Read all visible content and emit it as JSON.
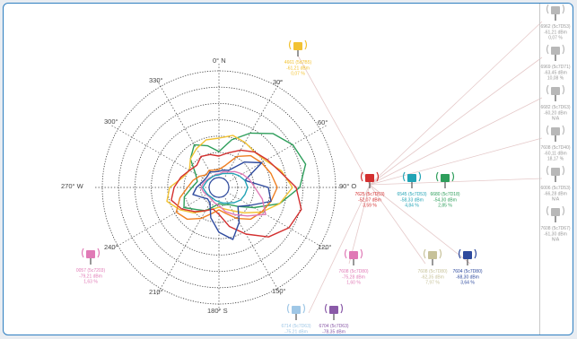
{
  "colors": {
    "frame_border": "#2f7fc1",
    "red": "#d32f2f",
    "orange": "#ef7f22",
    "green": "#2e9e5b",
    "yellow": "#f2c232",
    "blue": "#2e4a9e",
    "teal": "#22a3b5",
    "pink": "#e07ab6",
    "olive": "#c7c29a",
    "light_blue": "#9fc7e6",
    "grey": "#9a9a9a"
  },
  "compass": {
    "n": "0° N",
    "d30": "30°",
    "d60": "60°",
    "e": "90° O",
    "d120": "120°",
    "d150": "150°",
    "s": "180° S",
    "d210": "210°",
    "d240": "240°",
    "w": "270° W",
    "d300": "300°",
    "d330": "330°"
  },
  "antennas": [
    {
      "id": "a_yellow",
      "icon": "cell-tower-icon",
      "color": "#f2c232",
      "lines": [
        "4661 (5d7B5)",
        "-61,21 dBm",
        "0,07 %"
      ]
    },
    {
      "id": "a_red",
      "icon": "cell-tower-icon",
      "color": "#d32f2f",
      "lines": [
        "7625 (5c7D53)",
        "-52,07 dBm",
        "3,59 %"
      ]
    },
    {
      "id": "a_teal",
      "icon": "cell-tower-icon",
      "color": "#22a3b5",
      "lines": [
        "6545 (5c7D53)",
        "-58,33 dBm",
        "4,84 %"
      ]
    },
    {
      "id": "a_green",
      "icon": "cell-tower-icon",
      "color": "#2e9e5b",
      "lines": [
        "6680 (5c7D18)",
        "-54,30 dBm",
        "2,85 %"
      ]
    },
    {
      "id": "a_pink_left",
      "icon": "cell-tower-icon",
      "color": "#e07ab6",
      "lines": [
        "0057 (5c7203)",
        "-79,21 dBm",
        "1,63 %"
      ]
    },
    {
      "id": "a_pink_mid",
      "icon": "cell-tower-icon",
      "color": "#e07ab6",
      "lines": [
        "7608 (5c7D80)",
        "-75,28 dBm",
        "1,60 %"
      ]
    },
    {
      "id": "a_olive",
      "icon": "cell-tower-icon",
      "color": "#c7c29a",
      "lines": [
        "7608 (5c7D80)",
        "-62,35 dBm",
        "7,97 %"
      ]
    },
    {
      "id": "a_blue",
      "icon": "cell-tower-icon",
      "color": "#2e4a9e",
      "lines": [
        "7604 (5c7D80)",
        "-68,30 dBm",
        "3,64 %"
      ]
    },
    {
      "id": "a_lightblue",
      "icon": "cell-tower-icon",
      "color": "#9fc7e6",
      "lines": [
        "6714 (5c7D63)",
        "-75,21 dBm",
        "0,05 %"
      ]
    },
    {
      "id": "a_purple",
      "icon": "cell-tower-icon",
      "color": "#8a5aa8",
      "lines": [
        "6704 (5c7D63)",
        "-78,35 dBm",
        "0,42 %"
      ]
    }
  ],
  "side_list": [
    {
      "lines": [
        "6962 (5c7D53)",
        "-61,21 dBm",
        "0,07 %"
      ]
    },
    {
      "lines": [
        "6969 (5c7D71)",
        "-63,45 dBm",
        "10,08 %"
      ]
    },
    {
      "lines": [
        "6682 (5c7D63)",
        "-60,20 dBm",
        "N/A"
      ]
    },
    {
      "lines": [
        "7608 (5c7D40)",
        "-60,11 dBm",
        "18,17 %"
      ]
    },
    {
      "lines": [
        "6006 (5c7D53)",
        "-66,28 dBm",
        "N/A"
      ]
    },
    {
      "lines": [
        "7608 (5c7D67)",
        "-61,30 dBm",
        "N/A"
      ]
    }
  ]
}
